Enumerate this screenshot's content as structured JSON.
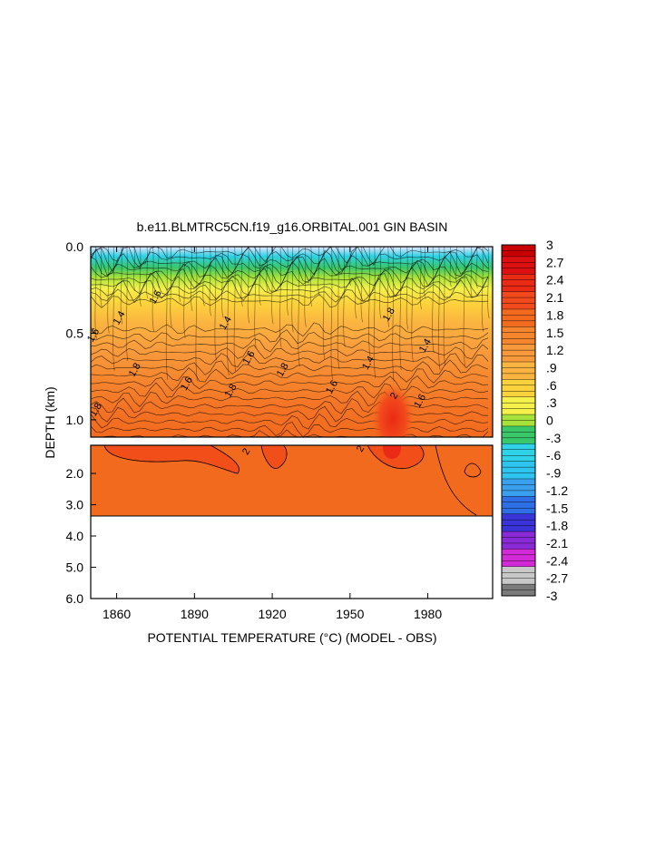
{
  "chart_data": {
    "type": "heatmap",
    "title": "b.e11.BLMTRC5CN.f19_g16.ORBITAL.001 GIN BASIN",
    "xlabel": "POTENTIAL TEMPERATURE (°C) (MODEL - OBS)",
    "ylabel": "DEPTH (km)",
    "xlim": [
      1850,
      2005
    ],
    "x_ticks": [
      "1860",
      "1890",
      "1920",
      "1950",
      "1980"
    ],
    "upper_panel": {
      "ylim": [
        0.0,
        1.1
      ],
      "y_ticks": [
        "0.0",
        "0.5",
        "1.0"
      ],
      "y_tick_values": [
        0.0,
        0.5,
        1.0
      ]
    },
    "lower_panel": {
      "ylim": [
        1.1,
        6.0
      ],
      "y_ticks": [
        "2.0",
        "3.0",
        "4.0",
        "5.0",
        "6.0"
      ],
      "y_tick_values": [
        2.0,
        3.0,
        4.0,
        5.0,
        6.0
      ],
      "data_bottom_depth": 3.35
    },
    "colorbar": {
      "labels": [
        "3",
        "2.7",
        "2.4",
        "2.1",
        "1.8",
        "1.5",
        "1.2",
        ".9",
        ".6",
        ".3",
        "0",
        "-.3",
        "-.6",
        "-.9",
        "-1.2",
        "-1.5",
        "-1.8",
        "-2.1",
        "-2.4",
        "-2.7",
        "-3"
      ],
      "min": -3,
      "max": 3
    },
    "contour_labels": [
      "1.6",
      "1.8",
      "1.4",
      "1.6",
      "1.8",
      "1.6",
      "1.8",
      "1.4",
      "1.6",
      "1.8",
      "1.6",
      "1.8",
      "1.4",
      "1.6",
      "1.4",
      "2",
      "2",
      "2"
    ]
  }
}
